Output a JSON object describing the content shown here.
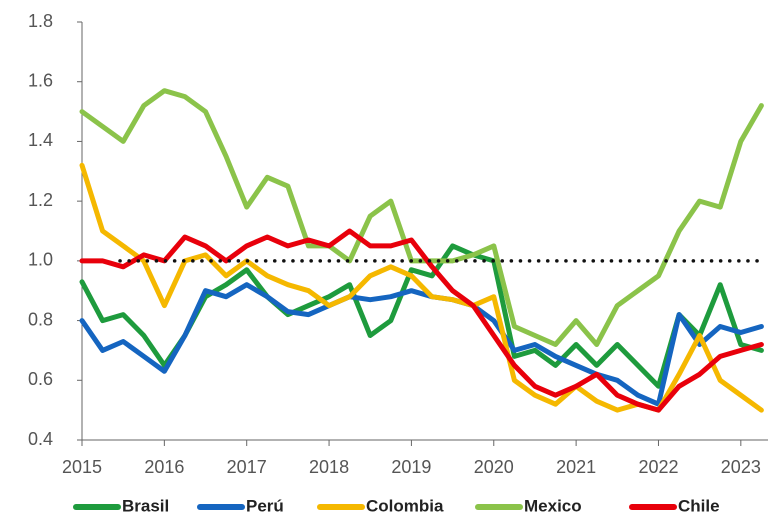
{
  "chart_data": {
    "type": "line",
    "x": [
      2015,
      2015.25,
      2015.5,
      2015.75,
      2016,
      2016.25,
      2016.5,
      2016.75,
      2017,
      2017.25,
      2017.5,
      2017.75,
      2018,
      2018.25,
      2018.5,
      2018.75,
      2019,
      2019.25,
      2019.5,
      2019.75,
      2020,
      2020.25,
      2020.5,
      2020.75,
      2021,
      2021.25,
      2021.5,
      2021.75,
      2022,
      2022.25,
      2022.5,
      2022.75,
      2023,
      2023.25
    ],
    "series": [
      {
        "name": "Brasil",
        "color": "#1e9b3d",
        "values": [
          0.93,
          0.8,
          0.82,
          0.75,
          0.65,
          0.75,
          0.88,
          0.92,
          0.97,
          0.88,
          0.82,
          0.85,
          0.88,
          0.92,
          0.75,
          0.8,
          0.97,
          0.95,
          1.05,
          1.02,
          1.0,
          0.68,
          0.7,
          0.65,
          0.72,
          0.65,
          0.72,
          0.65,
          0.58,
          0.82,
          0.75,
          0.92,
          0.72,
          0.7
        ]
      },
      {
        "name": "Perú",
        "color": "#1565c0",
        "values": [
          0.8,
          0.7,
          0.73,
          0.68,
          0.63,
          0.75,
          0.9,
          0.88,
          0.92,
          0.88,
          0.83,
          0.82,
          0.85,
          0.88,
          0.87,
          0.88,
          0.9,
          0.88,
          0.87,
          0.85,
          0.8,
          0.7,
          0.72,
          0.68,
          0.65,
          0.62,
          0.6,
          0.55,
          0.52,
          0.82,
          0.72,
          0.78,
          0.76,
          0.78
        ]
      },
      {
        "name": "Colombia",
        "color": "#f5b800",
        "values": [
          1.32,
          1.1,
          1.05,
          1.0,
          0.85,
          1.0,
          1.02,
          0.95,
          1.0,
          0.95,
          0.92,
          0.9,
          0.85,
          0.88,
          0.95,
          0.98,
          0.95,
          0.88,
          0.87,
          0.85,
          0.88,
          0.6,
          0.55,
          0.52,
          0.58,
          0.53,
          0.5,
          0.52,
          0.5,
          0.62,
          0.75,
          0.6,
          0.55,
          0.5
        ]
      },
      {
        "name": "Mexico",
        "color": "#8bc34a",
        "values": [
          1.5,
          1.45,
          1.4,
          1.52,
          1.57,
          1.55,
          1.5,
          1.35,
          1.18,
          1.28,
          1.25,
          1.05,
          1.05,
          1.0,
          1.15,
          1.2,
          1.0,
          1.0,
          1.0,
          1.02,
          1.05,
          0.78,
          0.75,
          0.72,
          0.8,
          0.72,
          0.85,
          0.9,
          0.95,
          1.1,
          1.2,
          1.18,
          1.4,
          1.52
        ]
      },
      {
        "name": "Chile",
        "color": "#e8000b",
        "values": [
          1.0,
          1.0,
          0.98,
          1.02,
          1.0,
          1.08,
          1.05,
          1.0,
          1.05,
          1.08,
          1.05,
          1.07,
          1.05,
          1.1,
          1.05,
          1.05,
          1.07,
          0.98,
          0.9,
          0.85,
          0.75,
          0.65,
          0.58,
          0.55,
          0.58,
          0.62,
          0.55,
          0.52,
          0.5,
          0.58,
          0.62,
          0.68,
          0.7,
          0.72
        ]
      }
    ],
    "reference_line": 1,
    "xlim": [
      2015,
      2023.33
    ],
    "xticks": [
      2015,
      2016,
      2017,
      2018,
      2019,
      2020,
      2021,
      2022,
      2023
    ],
    "ylim": [
      0.4,
      1.8
    ],
    "yticks": [
      0.4,
      0.6,
      0.8,
      {
        "value": 1,
        "label": "1.0"
      },
      1.2,
      1.4,
      1.6,
      1.8
    ],
    "grid": false,
    "legend": "bottom"
  }
}
